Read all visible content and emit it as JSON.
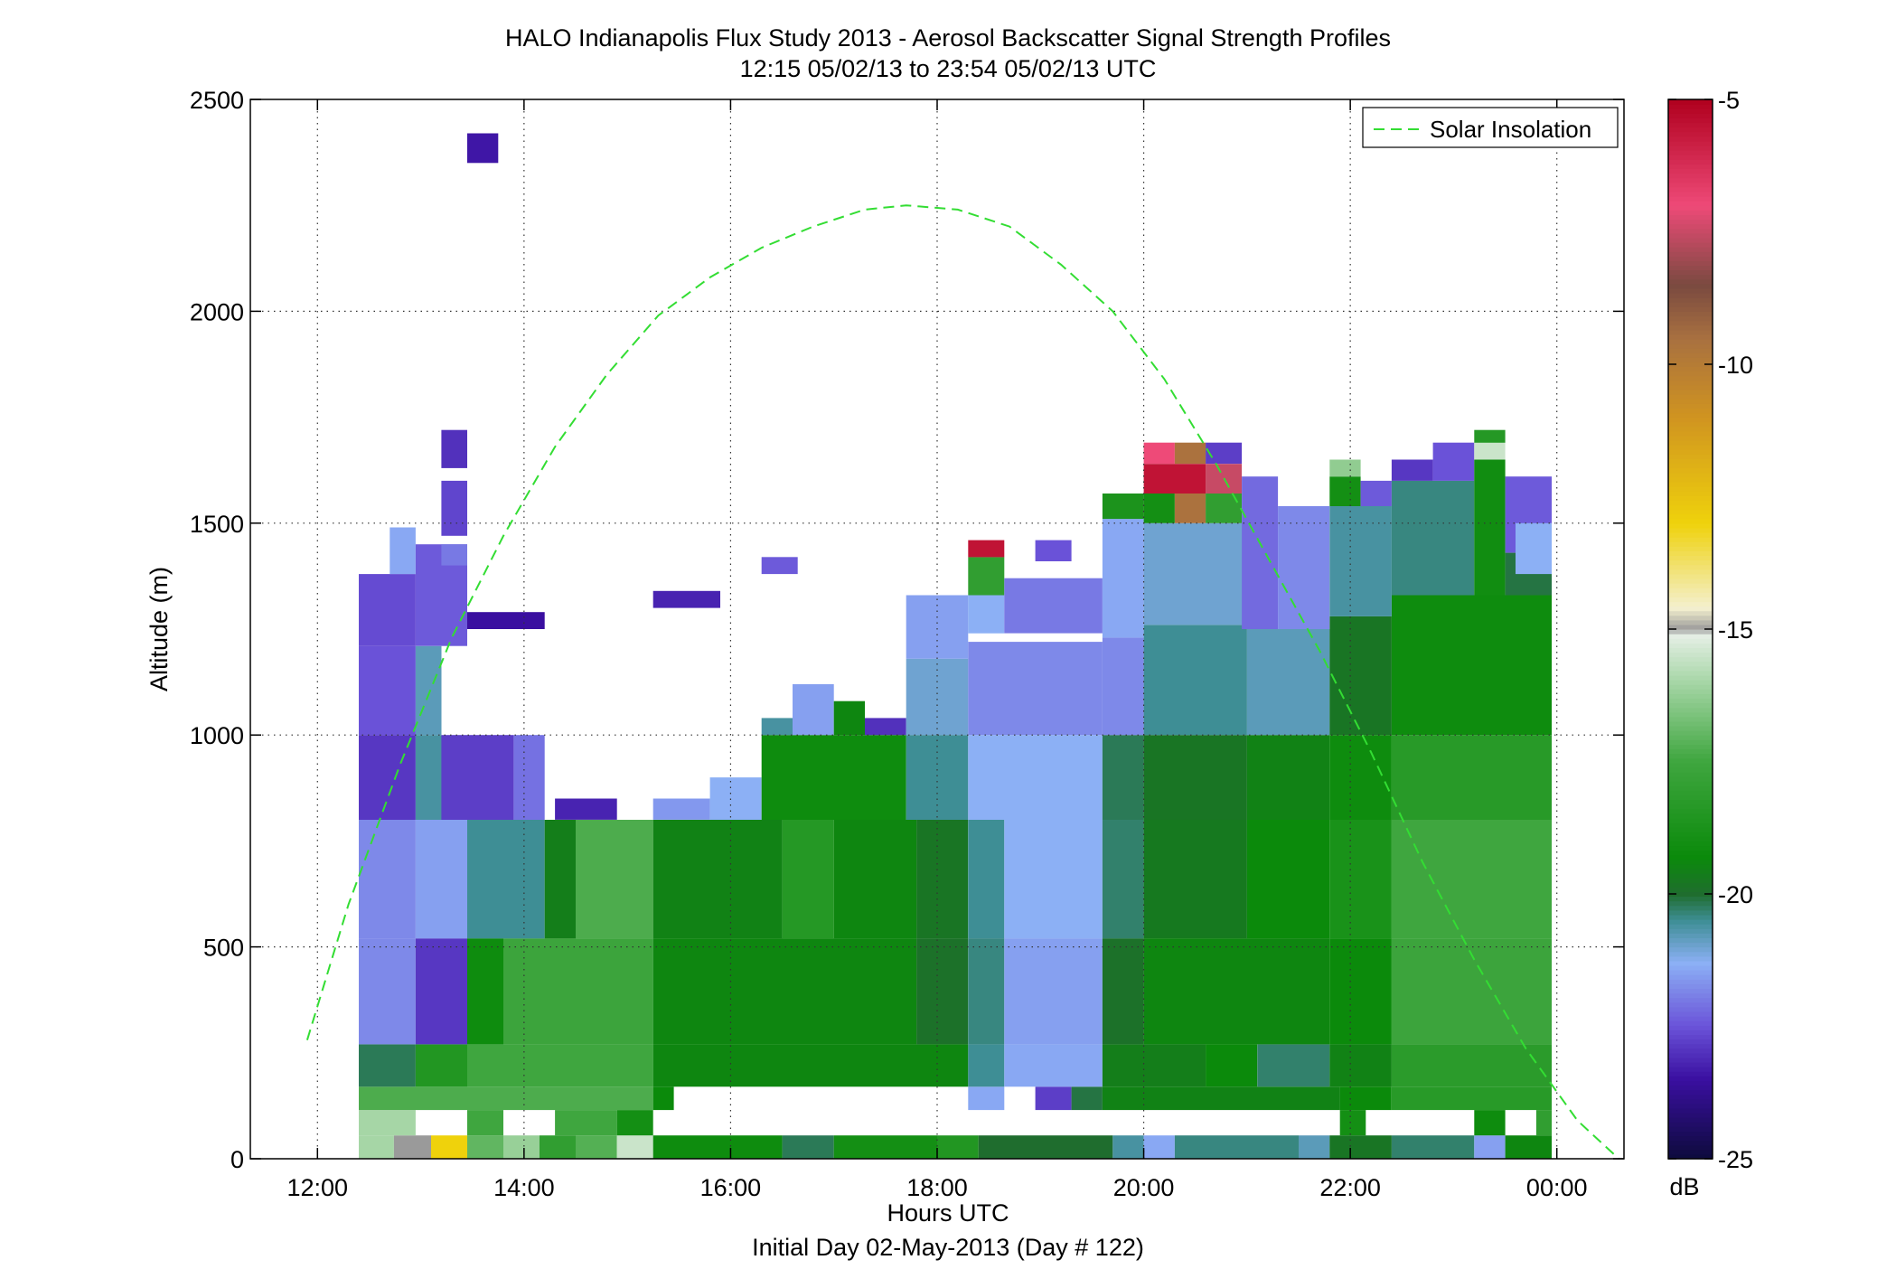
{
  "chart_data": {
    "type": "heatmap",
    "title": "HALO Indianapolis Flux Study 2013 - Aerosol Backscatter Signal Strength Profiles",
    "subtitle": "12:15 05/02/13 to 23:54 05/02/13  UTC",
    "xlabel": "Hours UTC",
    "xlabel2": "Initial Day 02-May-2013 (Day # 122)",
    "ylabel": "Altitude (m)",
    "colorbar_label": "dB",
    "xlim": [
      11.35,
      24.65
    ],
    "ylim": [
      0,
      2500
    ],
    "x_ticks": [
      12,
      14,
      16,
      18,
      20,
      22,
      24
    ],
    "x_tick_labels": [
      "12:00",
      "14:00",
      "16:00",
      "18:00",
      "20:00",
      "22:00",
      "00:00"
    ],
    "y_ticks": [
      0,
      500,
      1000,
      1500,
      2000,
      2500
    ],
    "y_tick_labels": [
      "0",
      "500",
      "1000",
      "1500",
      "2000",
      "2500"
    ],
    "clim": [
      -25,
      -5
    ],
    "colorbar_ticks": [
      -25,
      -20,
      -15,
      -10,
      -5
    ],
    "colorbar_tick_labels": [
      "-25",
      "-20",
      "-15",
      "-10",
      "-5"
    ],
    "grid": true,
    "legend_position": "top-right",
    "series": [
      {
        "name": "Solar Insolation",
        "type": "line",
        "style": "dashed",
        "color": "#33dd33",
        "x": [
          11.9,
          12.3,
          12.8,
          13.3,
          13.8,
          14.3,
          14.8,
          15.3,
          15.8,
          16.3,
          16.8,
          17.3,
          17.7,
          18.2,
          18.7,
          19.2,
          19.7,
          20.2,
          20.7,
          21.2,
          21.7,
          22.2,
          22.7,
          23.2,
          23.7,
          24.2,
          24.6
        ],
        "y": [
          280,
          600,
          930,
          1230,
          1470,
          1680,
          1850,
          1990,
          2080,
          2150,
          2200,
          2240,
          2250,
          2240,
          2200,
          2110,
          2000,
          1840,
          1640,
          1420,
          1200,
          960,
          700,
          470,
          260,
          90,
          0
        ]
      }
    ],
    "colormap": [
      {
        "v": -25,
        "c": "#0d0b3c"
      },
      {
        "v": -23.5,
        "c": "#3a0fa0"
      },
      {
        "v": -22.5,
        "c": "#6a52d8"
      },
      {
        "v": -21.3,
        "c": "#8cb0f5"
      },
      {
        "v": -20.5,
        "c": "#3e8e95"
      },
      {
        "v": -20,
        "c": "#1f6d2e"
      },
      {
        "v": -19.3,
        "c": "#0b8a0b"
      },
      {
        "v": -17.5,
        "c": "#3fa63f"
      },
      {
        "v": -16,
        "c": "#a6d6a6"
      },
      {
        "v": -15.1,
        "c": "#e6efe6"
      },
      {
        "v": -15,
        "c": "#9a9a9a"
      },
      {
        "v": -14.6,
        "c": "#f4f0cf"
      },
      {
        "v": -13,
        "c": "#efd20c"
      },
      {
        "v": -11,
        "c": "#d09420"
      },
      {
        "v": -9.5,
        "c": "#a87040"
      },
      {
        "v": -8.5,
        "c": "#7a4a40"
      },
      {
        "v": -7,
        "c": "#ee4a78"
      },
      {
        "v": -5,
        "c": "#b0001e"
      }
    ],
    "cells": [
      [
        12.4,
        0,
        12.74,
        55,
        -16.0
      ],
      [
        12.74,
        0,
        13.1,
        55,
        -15.0
      ],
      [
        13.1,
        0,
        13.45,
        55,
        -13.0
      ],
      [
        13.45,
        0,
        13.8,
        55,
        -17.0
      ],
      [
        13.8,
        0,
        14.15,
        55,
        -16.2
      ],
      [
        14.15,
        0,
        14.5,
        55,
        -18.0
      ],
      [
        14.5,
        0,
        14.9,
        55,
        -17.2
      ],
      [
        14.9,
        0,
        15.25,
        55,
        -15.5
      ],
      [
        15.25,
        0,
        16.5,
        55,
        -19.2
      ],
      [
        16.5,
        0,
        17.0,
        55,
        -20.2
      ],
      [
        17.0,
        0,
        18.0,
        55,
        -19.0
      ],
      [
        18.0,
        0,
        18.4,
        55,
        -18.5
      ],
      [
        18.4,
        0,
        19.7,
        55,
        -20.0
      ],
      [
        19.7,
        0,
        20.0,
        55,
        -20.6
      ],
      [
        20.0,
        0,
        20.3,
        55,
        -21.4
      ],
      [
        20.3,
        0,
        21.5,
        55,
        -20.4
      ],
      [
        21.5,
        0,
        21.8,
        55,
        -20.8
      ],
      [
        21.8,
        0,
        22.4,
        55,
        -19.8
      ],
      [
        22.4,
        0,
        23.2,
        55,
        -20.3
      ],
      [
        23.2,
        0,
        23.5,
        55,
        -21.5
      ],
      [
        23.5,
        0,
        23.95,
        55,
        -19.4
      ],
      [
        12.4,
        55,
        12.95,
        115,
        -16.0
      ],
      [
        13.45,
        55,
        13.8,
        115,
        -17.5
      ],
      [
        14.3,
        55,
        14.9,
        115,
        -17.5
      ],
      [
        14.9,
        55,
        15.25,
        115,
        -19.0
      ],
      [
        21.9,
        55,
        22.15,
        115,
        -19.0
      ],
      [
        23.2,
        55,
        23.5,
        115,
        -19.2
      ],
      [
        23.8,
        55,
        23.95,
        115,
        -18.0
      ],
      [
        12.4,
        115,
        15.25,
        170,
        -17.3
      ],
      [
        15.25,
        115,
        15.45,
        170,
        -19.3
      ],
      [
        18.3,
        115,
        18.65,
        170,
        -21.4
      ],
      [
        18.95,
        115,
        19.3,
        170,
        -22.8
      ],
      [
        19.3,
        115,
        19.6,
        170,
        -20.1
      ],
      [
        19.6,
        115,
        21.9,
        170,
        -19.5
      ],
      [
        21.9,
        115,
        22.4,
        170,
        -19.3
      ],
      [
        22.4,
        115,
        23.95,
        170,
        -18.3
      ],
      [
        12.4,
        170,
        12.95,
        270,
        -20.2
      ],
      [
        12.95,
        170,
        13.45,
        270,
        -18.5
      ],
      [
        13.45,
        170,
        15.25,
        270,
        -17.5
      ],
      [
        15.25,
        170,
        18.3,
        270,
        -19.4
      ],
      [
        18.3,
        170,
        18.65,
        270,
        -20.5
      ],
      [
        18.65,
        170,
        19.6,
        270,
        -21.4
      ],
      [
        19.6,
        170,
        20.6,
        270,
        -19.6
      ],
      [
        20.6,
        170,
        21.1,
        270,
        -19.3
      ],
      [
        21.1,
        170,
        21.8,
        270,
        -20.3
      ],
      [
        21.8,
        170,
        22.4,
        270,
        -19.5
      ],
      [
        22.4,
        170,
        23.95,
        270,
        -18.2
      ],
      [
        12.4,
        270,
        12.95,
        520,
        -21.8
      ],
      [
        12.95,
        270,
        13.45,
        520,
        -22.9
      ],
      [
        13.45,
        270,
        13.8,
        520,
        -19.2
      ],
      [
        13.8,
        270,
        15.25,
        520,
        -17.6
      ],
      [
        15.25,
        270,
        17.8,
        520,
        -19.4
      ],
      [
        17.8,
        270,
        18.3,
        520,
        -19.9
      ],
      [
        18.3,
        270,
        18.65,
        520,
        -20.4
      ],
      [
        18.65,
        270,
        19.6,
        520,
        -21.5
      ],
      [
        19.6,
        270,
        20.0,
        520,
        -19.9
      ],
      [
        20.0,
        270,
        21.8,
        520,
        -19.4
      ],
      [
        21.8,
        270,
        22.4,
        520,
        -19.3
      ],
      [
        22.4,
        270,
        23.95,
        520,
        -17.6
      ],
      [
        12.4,
        520,
        12.95,
        800,
        -21.8
      ],
      [
        12.95,
        520,
        13.45,
        800,
        -21.5
      ],
      [
        13.45,
        520,
        14.2,
        800,
        -20.5
      ],
      [
        14.2,
        520,
        14.5,
        800,
        -19.6
      ],
      [
        14.5,
        520,
        15.25,
        800,
        -17.3
      ],
      [
        15.25,
        520,
        16.5,
        800,
        -19.5
      ],
      [
        16.5,
        520,
        17.0,
        800,
        -18.4
      ],
      [
        17.0,
        520,
        17.8,
        800,
        -19.4
      ],
      [
        17.8,
        520,
        18.3,
        800,
        -19.8
      ],
      [
        18.3,
        520,
        18.65,
        800,
        -20.5
      ],
      [
        18.65,
        520,
        19.6,
        800,
        -21.3
      ],
      [
        19.6,
        520,
        20.0,
        800,
        -20.3
      ],
      [
        20.0,
        520,
        21.0,
        800,
        -19.7
      ],
      [
        21.0,
        520,
        21.8,
        800,
        -19.3
      ],
      [
        21.8,
        520,
        22.4,
        800,
        -18.8
      ],
      [
        22.4,
        520,
        23.95,
        800,
        -17.5
      ],
      [
        12.4,
        800,
        12.95,
        1000,
        -22.9
      ],
      [
        12.95,
        800,
        13.2,
        1000,
        -20.6
      ],
      [
        13.2,
        800,
        13.9,
        1000,
        -22.8
      ],
      [
        13.9,
        800,
        14.2,
        1000,
        -22.1
      ],
      [
        14.3,
        800,
        14.9,
        850,
        -23.2
      ],
      [
        15.25,
        800,
        15.8,
        850,
        -21.6
      ],
      [
        15.8,
        800,
        16.3,
        900,
        -21.3
      ],
      [
        16.3,
        800,
        17.7,
        1000,
        -19.2
      ],
      [
        17.7,
        800,
        18.3,
        1000,
        -20.5
      ],
      [
        18.3,
        800,
        19.6,
        1000,
        -21.3
      ],
      [
        19.6,
        800,
        20.0,
        1000,
        -20.2
      ],
      [
        20.0,
        800,
        21.0,
        1000,
        -19.8
      ],
      [
        21.0,
        800,
        21.8,
        1000,
        -19.5
      ],
      [
        21.8,
        800,
        22.4,
        1000,
        -19.2
      ],
      [
        22.4,
        800,
        23.95,
        1000,
        -18.3
      ],
      [
        12.4,
        1000,
        12.95,
        1210,
        -22.5
      ],
      [
        12.95,
        1000,
        13.2,
        1210,
        -20.8
      ],
      [
        16.3,
        1000,
        16.6,
        1040,
        -20.6
      ],
      [
        16.6,
        1000,
        17.0,
        1120,
        -21.5
      ],
      [
        17.0,
        1000,
        17.3,
        1080,
        -19.4
      ],
      [
        17.3,
        1000,
        17.7,
        1040,
        -23.0
      ],
      [
        17.7,
        1000,
        18.3,
        1180,
        -21.0
      ],
      [
        18.3,
        1000,
        19.6,
        1220,
        -21.8
      ],
      [
        19.6,
        1000,
        20.0,
        1230,
        -21.8
      ],
      [
        20.0,
        1000,
        21.0,
        1260,
        -20.5
      ],
      [
        21.0,
        1000,
        21.8,
        1250,
        -20.8
      ],
      [
        21.8,
        1000,
        22.4,
        1280,
        -19.8
      ],
      [
        22.4,
        1000,
        23.95,
        1330,
        -19.2
      ],
      [
        12.4,
        1210,
        12.95,
        1380,
        -22.6
      ],
      [
        12.7,
        1380,
        12.95,
        1490,
        -21.4
      ],
      [
        12.95,
        1210,
        13.45,
        1450,
        -22.4
      ],
      [
        13.45,
        1250,
        14.2,
        1290,
        -23.5
      ],
      [
        13.2,
        1400,
        13.45,
        1450,
        -22.0
      ],
      [
        13.2,
        1470,
        13.45,
        1600,
        -22.7
      ],
      [
        13.2,
        1630,
        13.45,
        1720,
        -23.0
      ],
      [
        13.45,
        2350,
        13.75,
        2420,
        -23.4
      ],
      [
        15.25,
        1300,
        15.9,
        1340,
        -23.2
      ],
      [
        16.3,
        1380,
        16.65,
        1420,
        -22.4
      ],
      [
        17.7,
        1180,
        18.3,
        1330,
        -21.5
      ],
      [
        18.3,
        1240,
        18.65,
        1330,
        -21.3
      ],
      [
        18.3,
        1330,
        18.65,
        1420,
        -18.0
      ],
      [
        18.3,
        1420,
        18.65,
        1460,
        -5.5
      ],
      [
        18.65,
        1240,
        19.6,
        1370,
        -22.0
      ],
      [
        18.95,
        1410,
        19.3,
        1460,
        -22.5
      ],
      [
        19.6,
        1230,
        20.0,
        1510,
        -21.4
      ],
      [
        19.6,
        1510,
        20.0,
        1570,
        -18.7
      ],
      [
        20.0,
        1260,
        21.0,
        1500,
        -21.0
      ],
      [
        20.0,
        1500,
        20.3,
        1570,
        -19.0
      ],
      [
        20.3,
        1500,
        20.6,
        1570,
        -9.6
      ],
      [
        20.6,
        1500,
        20.95,
        1570,
        -18.0
      ],
      [
        20.0,
        1570,
        20.6,
        1640,
        -5.5
      ],
      [
        20.6,
        1570,
        20.95,
        1640,
        -7.5
      ],
      [
        20.0,
        1640,
        20.3,
        1690,
        -7.0
      ],
      [
        20.3,
        1640,
        20.6,
        1690,
        -9.6
      ],
      [
        20.6,
        1640,
        20.95,
        1690,
        -22.8
      ],
      [
        20.95,
        1250,
        21.3,
        1610,
        -22.2
      ],
      [
        21.3,
        1250,
        21.8,
        1540,
        -21.8
      ],
      [
        21.8,
        1280,
        22.4,
        1540,
        -20.6
      ],
      [
        21.8,
        1540,
        22.1,
        1610,
        -19.0
      ],
      [
        21.8,
        1610,
        22.1,
        1650,
        -16.3
      ],
      [
        22.1,
        1540,
        22.4,
        1600,
        -22.4
      ],
      [
        22.4,
        1330,
        23.2,
        1600,
        -20.4
      ],
      [
        22.4,
        1600,
        22.8,
        1650,
        -22.9
      ],
      [
        22.8,
        1600,
        23.2,
        1690,
        -22.5
      ],
      [
        23.2,
        1330,
        23.5,
        1650,
        -19.1
      ],
      [
        23.2,
        1650,
        23.5,
        1690,
        -15.5
      ],
      [
        23.2,
        1690,
        23.5,
        1720,
        -18.4
      ],
      [
        23.5,
        1430,
        23.95,
        1610,
        -22.4
      ],
      [
        23.5,
        1330,
        23.95,
        1430,
        -20.1
      ],
      [
        23.6,
        1380,
        23.95,
        1500,
        -21.3
      ]
    ]
  }
}
